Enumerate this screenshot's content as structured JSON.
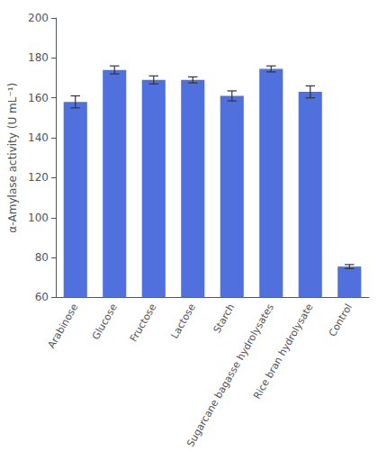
{
  "chart_data": {
    "type": "bar",
    "categories": [
      "Arabinose",
      "Glucose",
      "Fructose",
      "Lactose",
      "Starch",
      "Sugarcane bagasse hydrolysates",
      "Rice bran hydrolysate",
      "Control"
    ],
    "values": [
      158.0,
      174.0,
      169.0,
      169.0,
      161.0,
      174.5,
      163.0,
      75.5
    ],
    "errors": [
      3.0,
      2.0,
      2.0,
      1.5,
      2.5,
      1.5,
      3.0,
      1.0
    ],
    "ylabel": "α-Amylase activity (U mL⁻¹)",
    "ylim": [
      60,
      200
    ],
    "yticks": [
      60,
      80,
      100,
      120,
      140,
      160,
      180,
      200
    ],
    "grid": false
  }
}
